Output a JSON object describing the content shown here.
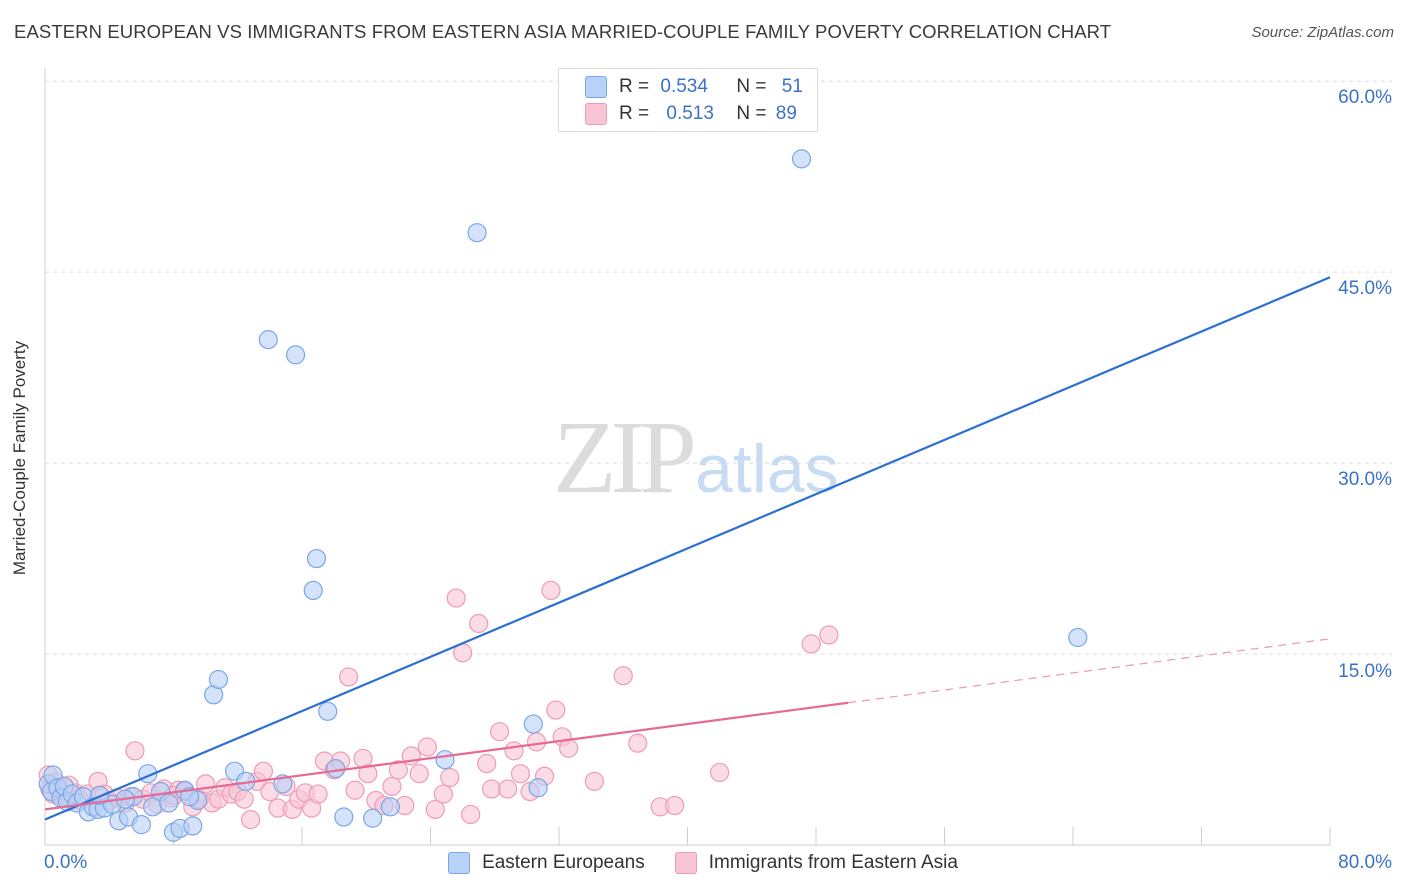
{
  "title": "EASTERN EUROPEAN VS IMMIGRANTS FROM EASTERN ASIA MARRIED-COUPLE FAMILY POVERTY CORRELATION CHART",
  "source": "Source: ZipAtlas.com",
  "watermark": {
    "zip": "ZIP",
    "atlas": "atlas"
  },
  "legend_top": [
    {
      "r_label": "R =",
      "r_value": "0.534",
      "n_label": "N =",
      "n_value": "51"
    },
    {
      "r_label": "R =",
      "r_value": "0.513",
      "n_label": "N =",
      "n_value": "89"
    }
  ],
  "colors": {
    "blue_fill": "#b7d1f7",
    "blue_stroke": "#7aa7e5",
    "blue_line": "#2a6fd1",
    "pink_fill": "#f9c5d5",
    "pink_stroke": "#ef9bb5",
    "pink_line": "#e56a95",
    "tick_text": "#3a72c9",
    "grid": "#dedede"
  },
  "chart_data": {
    "type": "scatter",
    "xlabel": "",
    "ylabel": "Married-Couple Family Poverty",
    "xlim": [
      0,
      80
    ],
    "ylim": [
      0,
      63.5
    ],
    "x_tick_labels": [
      "0.0%",
      "80.0%"
    ],
    "y_ticks": [
      15,
      30,
      45,
      60
    ],
    "y_tick_labels": [
      "15.0%",
      "30.0%",
      "45.0%",
      "60.0%"
    ],
    "grid": "dashed horizontal",
    "legend_position": "top-center",
    "series": [
      {
        "name": "Eastern Europeans",
        "r": 0.534,
        "n": 51,
        "trend": {
          "x": [
            0,
            80
          ],
          "y": [
            2.0,
            44.6
          ],
          "dashed_from_x": null
        },
        "points": [
          [
            0.2,
            4.8
          ],
          [
            0.4,
            4.2
          ],
          [
            0.5,
            5.5
          ],
          [
            0.8,
            4.5
          ],
          [
            1.0,
            3.7
          ],
          [
            1.2,
            4.6
          ],
          [
            1.4,
            3.4
          ],
          [
            1.7,
            4.0
          ],
          [
            2.0,
            3.3
          ],
          [
            2.4,
            3.8
          ],
          [
            2.7,
            2.6
          ],
          [
            3.0,
            3.0
          ],
          [
            3.3,
            2.8
          ],
          [
            3.7,
            2.9
          ],
          [
            4.2,
            3.2
          ],
          [
            4.6,
            1.9
          ],
          [
            5.2,
            2.2
          ],
          [
            5.5,
            3.8
          ],
          [
            6.0,
            1.6
          ],
          [
            6.4,
            5.6
          ],
          [
            6.7,
            3.0
          ],
          [
            7.2,
            4.2
          ],
          [
            7.7,
            3.3
          ],
          [
            8.0,
            1.0
          ],
          [
            8.4,
            1.3
          ],
          [
            8.7,
            4.3
          ],
          [
            9.2,
            1.5
          ],
          [
            9.5,
            3.5
          ],
          [
            10.5,
            11.8
          ],
          [
            10.8,
            13.0
          ],
          [
            11.8,
            5.8
          ],
          [
            12.5,
            5.0
          ],
          [
            13.9,
            39.7
          ],
          [
            14.8,
            4.8
          ],
          [
            15.6,
            38.5
          ],
          [
            16.7,
            20.0
          ],
          [
            16.9,
            22.5
          ],
          [
            17.6,
            10.5
          ],
          [
            18.6,
            2.2
          ],
          [
            18.1,
            6.0
          ],
          [
            20.4,
            2.1
          ],
          [
            21.5,
            3.0
          ],
          [
            24.9,
            6.7
          ],
          [
            26.9,
            48.1
          ],
          [
            30.4,
            9.5
          ],
          [
            30.7,
            4.5
          ],
          [
            47.1,
            53.9
          ],
          [
            64.3,
            16.3
          ],
          [
            5.0,
            3.6
          ],
          [
            3.4,
            3.9
          ],
          [
            9.0,
            3.8
          ]
        ]
      },
      {
        "name": "Immigrants from Eastern Asia",
        "r": 0.513,
        "n": 89,
        "trend": {
          "x": [
            0,
            80
          ],
          "y": [
            2.8,
            16.2
          ],
          "dashed_from_x": 50
        },
        "points": [
          [
            0.2,
            5.5
          ],
          [
            0.3,
            4.4
          ],
          [
            0.5,
            4.0
          ],
          [
            0.7,
            4.9
          ],
          [
            1.0,
            3.9
          ],
          [
            1.3,
            4.4
          ],
          [
            1.6,
            3.6
          ],
          [
            1.9,
            4.1
          ],
          [
            2.2,
            3.5
          ],
          [
            2.6,
            4.0
          ],
          [
            3.3,
            5.0
          ],
          [
            3.7,
            4.0
          ],
          [
            4.0,
            3.5
          ],
          [
            4.5,
            3.7
          ],
          [
            5.0,
            3.3
          ],
          [
            5.3,
            3.8
          ],
          [
            5.6,
            7.4
          ],
          [
            6.1,
            3.6
          ],
          [
            6.6,
            4.1
          ],
          [
            7.0,
            3.2
          ],
          [
            7.4,
            4.4
          ],
          [
            7.9,
            3.7
          ],
          [
            8.3,
            4.3
          ],
          [
            8.7,
            4.2
          ],
          [
            9.2,
            3.0
          ],
          [
            9.6,
            3.6
          ],
          [
            10.0,
            4.8
          ],
          [
            10.4,
            3.3
          ],
          [
            10.8,
            3.6
          ],
          [
            11.2,
            4.5
          ],
          [
            11.6,
            4.0
          ],
          [
            12.0,
            4.2
          ],
          [
            12.4,
            3.6
          ],
          [
            12.8,
            2.0
          ],
          [
            13.2,
            5.0
          ],
          [
            13.6,
            5.8
          ],
          [
            14.0,
            4.2
          ],
          [
            14.5,
            2.9
          ],
          [
            15.0,
            4.6
          ],
          [
            15.4,
            2.8
          ],
          [
            15.8,
            3.6
          ],
          [
            16.2,
            4.1
          ],
          [
            16.6,
            2.9
          ],
          [
            17.0,
            4.0
          ],
          [
            17.4,
            6.6
          ],
          [
            18.0,
            5.9
          ],
          [
            18.4,
            6.6
          ],
          [
            18.9,
            13.2
          ],
          [
            19.3,
            4.3
          ],
          [
            19.8,
            6.8
          ],
          [
            20.1,
            5.6
          ],
          [
            20.6,
            3.5
          ],
          [
            21.1,
            3.1
          ],
          [
            21.6,
            4.6
          ],
          [
            22.0,
            5.9
          ],
          [
            22.4,
            3.1
          ],
          [
            22.8,
            7.0
          ],
          [
            23.3,
            5.6
          ],
          [
            23.8,
            7.7
          ],
          [
            24.3,
            2.8
          ],
          [
            24.8,
            4.0
          ],
          [
            25.2,
            5.3
          ],
          [
            25.6,
            19.4
          ],
          [
            26.0,
            15.1
          ],
          [
            26.5,
            2.4
          ],
          [
            27.0,
            17.4
          ],
          [
            27.5,
            6.4
          ],
          [
            27.8,
            4.4
          ],
          [
            28.3,
            8.9
          ],
          [
            28.8,
            4.4
          ],
          [
            29.2,
            7.4
          ],
          [
            29.6,
            5.6
          ],
          [
            30.2,
            4.2
          ],
          [
            30.6,
            8.1
          ],
          [
            31.1,
            5.4
          ],
          [
            31.5,
            20.0
          ],
          [
            31.8,
            10.6
          ],
          [
            32.2,
            8.5
          ],
          [
            32.6,
            7.6
          ],
          [
            34.2,
            5.0
          ],
          [
            36.0,
            13.3
          ],
          [
            36.9,
            8.0
          ],
          [
            38.3,
            3.0
          ],
          [
            39.2,
            3.1
          ],
          [
            42.0,
            5.7
          ],
          [
            47.7,
            15.8
          ],
          [
            48.8,
            16.5
          ],
          [
            1.5,
            4.7
          ],
          [
            8.0,
            3.9
          ]
        ]
      }
    ]
  }
}
